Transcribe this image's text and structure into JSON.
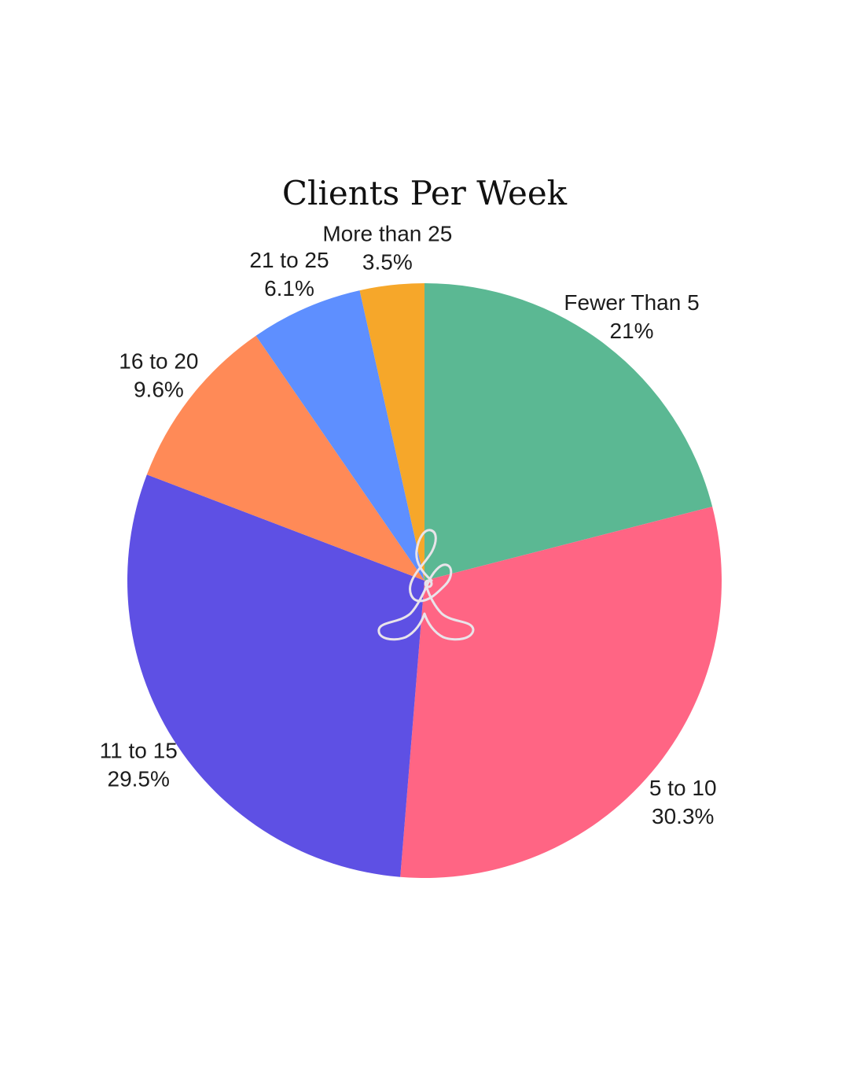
{
  "chart_data": {
    "type": "pie",
    "title": "Clients Per Week",
    "start_angle": "12 o'clock",
    "direction": "clockwise",
    "slices": [
      {
        "label": "Fewer Than 5",
        "value": 21,
        "display": "21%",
        "color": "#5BB893"
      },
      {
        "label": "5 to 10",
        "value": 30.3,
        "display": "30.3%",
        "color": "#FF6584"
      },
      {
        "label": "11 to 15",
        "value": 29.5,
        "display": "29.5%",
        "color": "#5E50E4"
      },
      {
        "label": "16 to 20",
        "value": 9.6,
        "display": "9.6%",
        "color": "#FF8A57"
      },
      {
        "label": "21 to 25",
        "value": 6.1,
        "display": "6.1%",
        "color": "#5E8FFF"
      },
      {
        "label": "More than 25",
        "value": 3.5,
        "display": "3.5%",
        "color": "#F6A72A"
      }
    ]
  },
  "logo": {
    "name": "infinity-figure-logo",
    "color": "#E9E4EA"
  }
}
